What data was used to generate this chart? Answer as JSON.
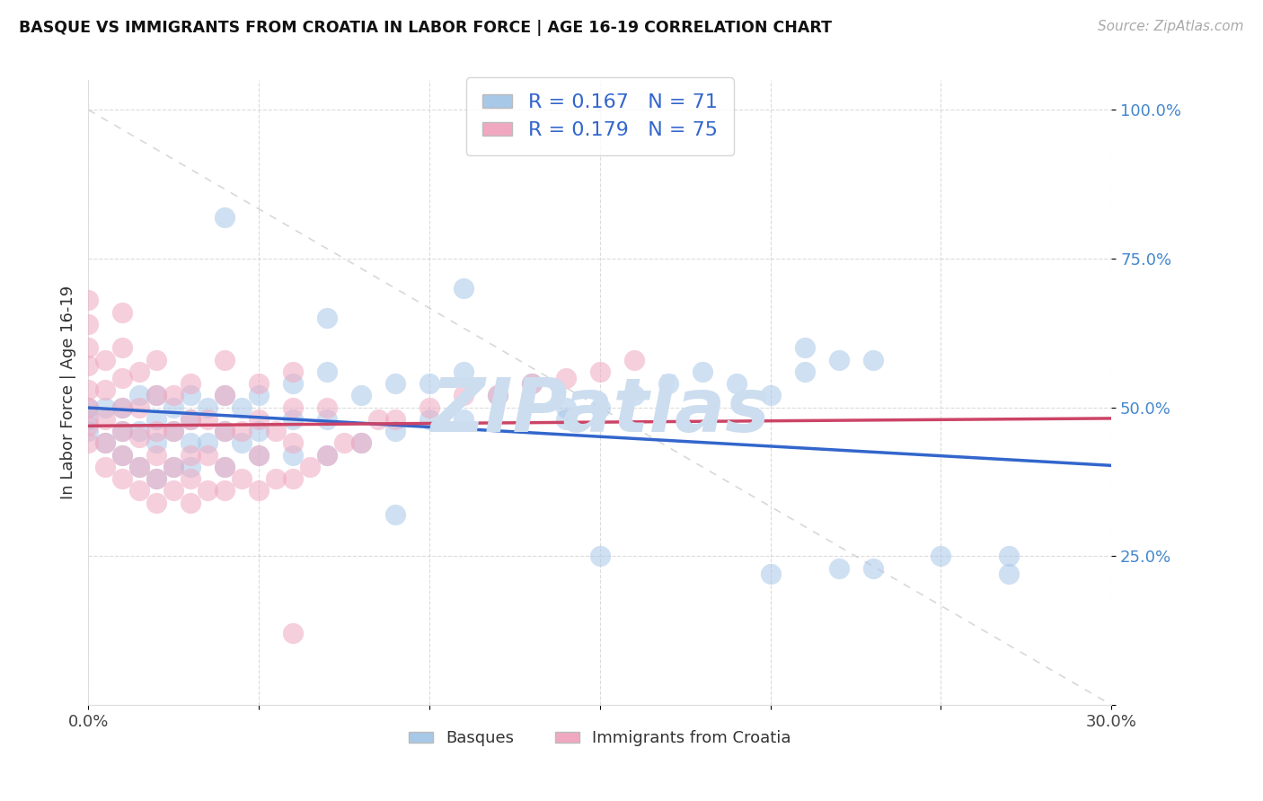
{
  "title": "BASQUE VS IMMIGRANTS FROM CROATIA IN LABOR FORCE | AGE 16-19 CORRELATION CHART",
  "source": "Source: ZipAtlas.com",
  "ylabel": "In Labor Force | Age 16-19",
  "x_min": 0.0,
  "x_max": 0.3,
  "y_min": 0.0,
  "y_max": 1.05,
  "blue_R": 0.167,
  "blue_N": 71,
  "pink_R": 0.179,
  "pink_N": 75,
  "blue_scatter_color": "#a8c8e8",
  "pink_scatter_color": "#f0a8c0",
  "blue_line_color": "#3366cc",
  "pink_line_color": "#cc4466",
  "legend_label_blue": "Basques",
  "legend_label_pink": "Immigrants from Croatia",
  "watermark": "ZIPatlas",
  "watermark_color": "#ccddef",
  "grid_color": "#cccccc",
  "background_color": "#ffffff",
  "ytick_color": "#4488cc",
  "blue_x": [
    0.0,
    0.0,
    0.0,
    0.005,
    0.005,
    0.01,
    0.01,
    0.01,
    0.015,
    0.015,
    0.015,
    0.02,
    0.02,
    0.02,
    0.02,
    0.025,
    0.025,
    0.025,
    0.03,
    0.03,
    0.03,
    0.03,
    0.035,
    0.035,
    0.04,
    0.04,
    0.04,
    0.045,
    0.045,
    0.05,
    0.05,
    0.05,
    0.06,
    0.06,
    0.06,
    0.07,
    0.07,
    0.07,
    0.08,
    0.08,
    0.09,
    0.09,
    0.1,
    0.1,
    0.11,
    0.11,
    0.12,
    0.13,
    0.14,
    0.15,
    0.16,
    0.17,
    0.18,
    0.19,
    0.2,
    0.21,
    0.22,
    0.23,
    0.04,
    0.07,
    0.09,
    0.11,
    0.14,
    0.15,
    0.2,
    0.21,
    0.22,
    0.23,
    0.25,
    0.27,
    0.27
  ],
  "blue_y": [
    0.46,
    0.48,
    0.5,
    0.44,
    0.5,
    0.42,
    0.46,
    0.5,
    0.4,
    0.46,
    0.52,
    0.38,
    0.44,
    0.48,
    0.52,
    0.4,
    0.46,
    0.5,
    0.4,
    0.44,
    0.48,
    0.52,
    0.44,
    0.5,
    0.4,
    0.46,
    0.52,
    0.44,
    0.5,
    0.42,
    0.46,
    0.52,
    0.42,
    0.48,
    0.54,
    0.42,
    0.48,
    0.56,
    0.44,
    0.52,
    0.46,
    0.54,
    0.48,
    0.54,
    0.48,
    0.56,
    0.52,
    0.54,
    0.5,
    0.5,
    0.52,
    0.54,
    0.56,
    0.54,
    0.52,
    0.56,
    0.58,
    0.58,
    0.82,
    0.65,
    0.32,
    0.7,
    0.48,
    0.25,
    0.22,
    0.6,
    0.23,
    0.23,
    0.25,
    0.25,
    0.22
  ],
  "pink_x": [
    0.0,
    0.0,
    0.0,
    0.0,
    0.0,
    0.0,
    0.0,
    0.0,
    0.005,
    0.005,
    0.005,
    0.005,
    0.005,
    0.01,
    0.01,
    0.01,
    0.01,
    0.01,
    0.01,
    0.01,
    0.015,
    0.015,
    0.015,
    0.015,
    0.015,
    0.02,
    0.02,
    0.02,
    0.02,
    0.02,
    0.02,
    0.025,
    0.025,
    0.025,
    0.025,
    0.03,
    0.03,
    0.03,
    0.03,
    0.03,
    0.035,
    0.035,
    0.035,
    0.04,
    0.04,
    0.04,
    0.04,
    0.04,
    0.045,
    0.045,
    0.05,
    0.05,
    0.05,
    0.05,
    0.055,
    0.055,
    0.06,
    0.06,
    0.06,
    0.06,
    0.065,
    0.07,
    0.07,
    0.075,
    0.08,
    0.085,
    0.09,
    0.1,
    0.11,
    0.12,
    0.13,
    0.14,
    0.15,
    0.16,
    0.06
  ],
  "pink_y": [
    0.44,
    0.47,
    0.5,
    0.53,
    0.57,
    0.6,
    0.64,
    0.68,
    0.4,
    0.44,
    0.48,
    0.53,
    0.58,
    0.38,
    0.42,
    0.46,
    0.5,
    0.55,
    0.6,
    0.66,
    0.36,
    0.4,
    0.45,
    0.5,
    0.56,
    0.34,
    0.38,
    0.42,
    0.46,
    0.52,
    0.58,
    0.36,
    0.4,
    0.46,
    0.52,
    0.34,
    0.38,
    0.42,
    0.48,
    0.54,
    0.36,
    0.42,
    0.48,
    0.36,
    0.4,
    0.46,
    0.52,
    0.58,
    0.38,
    0.46,
    0.36,
    0.42,
    0.48,
    0.54,
    0.38,
    0.46,
    0.38,
    0.44,
    0.5,
    0.56,
    0.4,
    0.42,
    0.5,
    0.44,
    0.44,
    0.48,
    0.48,
    0.5,
    0.52,
    0.52,
    0.54,
    0.55,
    0.56,
    0.58,
    0.12
  ]
}
